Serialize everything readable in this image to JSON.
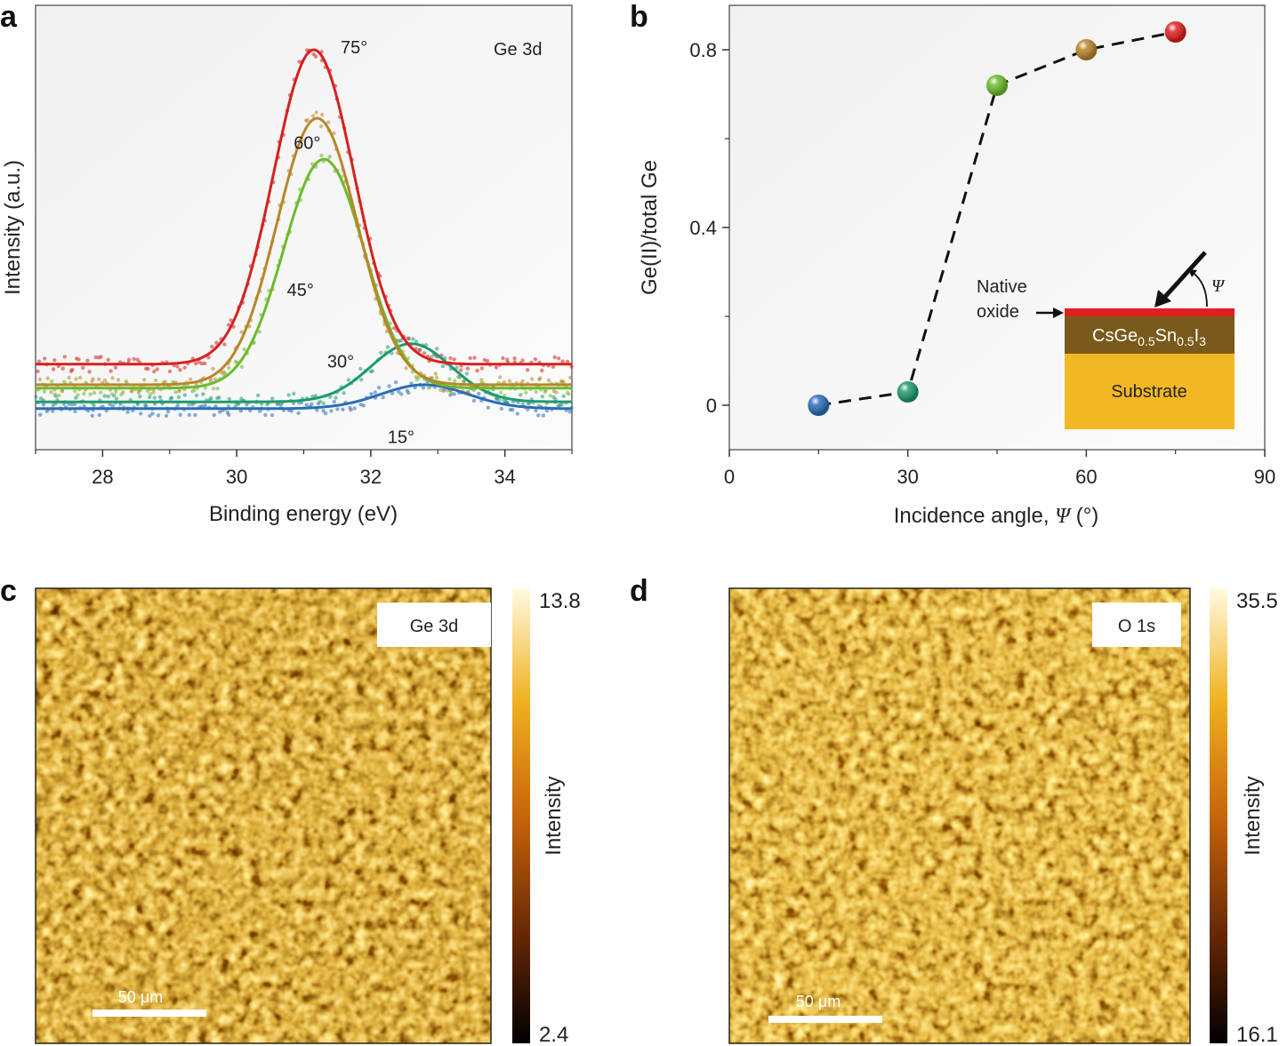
{
  "panels": {
    "a": "a",
    "b": "b",
    "c": "c",
    "d": "d"
  },
  "chart_data": [
    {
      "type": "line",
      "panel": "a",
      "title": "Ge 3d",
      "xlabel": "Binding energy (eV)",
      "ylabel": "Intensity (a.u.)",
      "xlim": [
        27,
        35
      ],
      "ylim": [
        0,
        1.3
      ],
      "xticks": [
        28,
        30,
        32,
        34
      ],
      "series": [
        {
          "name": "15°",
          "color": "#2a6db8",
          "baseline": 0.12,
          "peak_center": 32.8,
          "peak_height": 0.07,
          "peak_width": 0.65
        },
        {
          "name": "30°",
          "color": "#1f9a6e",
          "baseline": 0.14,
          "peak_center": 32.6,
          "peak_height": 0.17,
          "peak_width": 0.6
        },
        {
          "name": "45°",
          "color": "#6cba2c",
          "baseline": 0.18,
          "peak_center": 31.3,
          "peak_height": 0.67,
          "peak_width": 0.6
        },
        {
          "name": "60°",
          "color": "#b8862a",
          "baseline": 0.19,
          "peak_center": 31.2,
          "peak_height": 0.78,
          "peak_width": 0.6
        },
        {
          "name": "75°",
          "color": "#d62020",
          "baseline": 0.25,
          "peak_center": 31.15,
          "peak_height": 0.92,
          "peak_width": 0.6
        }
      ]
    },
    {
      "type": "scatter",
      "panel": "b",
      "xlabel": "Incidence angle, ",
      "xlabel_symbol": "Ψ",
      "xlabel_unit": " (°)",
      "ylabel": "Ge(II)/total Ge",
      "xlim": [
        0,
        90
      ],
      "ylim": [
        -0.1,
        0.9
      ],
      "xticks": [
        0,
        30,
        60,
        90
      ],
      "yticks": [
        0,
        0.4,
        0.8
      ],
      "ytick_labels": [
        "0",
        "0.4",
        "0.8"
      ],
      "x": [
        15,
        30,
        45,
        60,
        75
      ],
      "y": [
        0.0,
        0.03,
        0.72,
        0.8,
        0.84
      ],
      "point_colors": [
        "#2a6db8",
        "#1f9a6e",
        "#6cba2c",
        "#b8862a",
        "#e02020"
      ],
      "inset": {
        "native_oxide_label_1": "Native",
        "native_oxide_label_2": "oxide",
        "layer_label": "CsGe",
        "layer_sub_1": "0.5",
        "layer_mid": "Sn",
        "layer_sub_2": "0.5",
        "layer_end": "I",
        "layer_sub_3": "3",
        "substrate_label": "Substrate",
        "angle_symbol": "Ψ",
        "oxide_color": "#e02020",
        "layer_color": "#7a5a1c",
        "substrate_color": "#f2b824"
      }
    },
    {
      "type": "heatmap",
      "panel": "c",
      "label": "Ge 3d",
      "colorbar_max": "13.8",
      "colorbar_min": "2.4",
      "colorbar_label": "Intensity",
      "scale_bar": "50 μm"
    },
    {
      "type": "heatmap",
      "panel": "d",
      "label": "O 1s",
      "colorbar_max": "35.5",
      "colorbar_min": "16.1",
      "colorbar_label": "Intensity",
      "scale_bar": "50 μm"
    }
  ]
}
